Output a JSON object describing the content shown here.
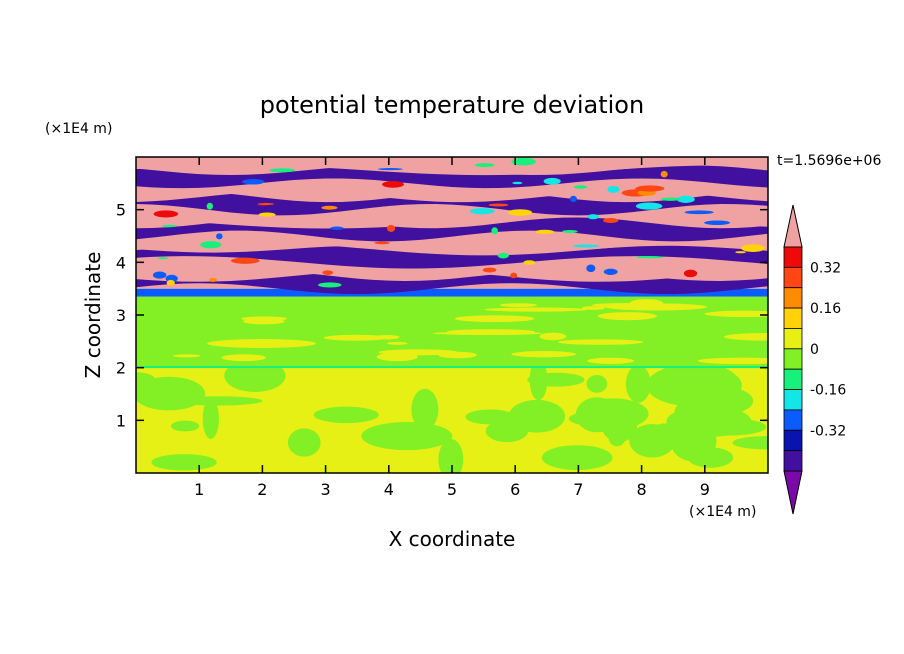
{
  "chart_data": {
    "type": "heatmap",
    "title": "potential temperature deviation",
    "xlabel": "X coordinate",
    "ylabel": "Z coordinate",
    "x_unit": "(×1E4 m)",
    "y_unit": "(×1E4 m)",
    "time_label": "t=1.5696e+06",
    "xlim": [
      0,
      10
    ],
    "ylim": [
      0,
      6
    ],
    "x_ticks": [
      "1",
      "2",
      "3",
      "4",
      "5",
      "6",
      "7",
      "8",
      "9"
    ],
    "y_ticks": [
      "1",
      "2",
      "3",
      "4",
      "5"
    ],
    "colorbar": {
      "levels": [
        -0.48,
        -0.4,
        -0.32,
        -0.24,
        -0.16,
        -0.08,
        0,
        0.08,
        0.16,
        0.24,
        0.32,
        0.4
      ],
      "tick_labels": [
        "0.32",
        "0.16",
        "0",
        "-0.16",
        "-0.32"
      ],
      "tick_values": [
        0.32,
        0.16,
        0,
        -0.16,
        -0.32
      ],
      "colors": [
        "#7a0aa8",
        "#42109e",
        "#0a12b0",
        "#0a5cff",
        "#14e6e6",
        "#18f07c",
        "#82f024",
        "#e6f014",
        "#ffd20a",
        "#ff8c00",
        "#ff4614",
        "#ec0a0a",
        "#f0a2a2"
      ],
      "extend": "both"
    },
    "regions": [
      {
        "z_range": [
          0,
          2.0
        ],
        "dominant_value": 0.04,
        "secondary_value": -0.04,
        "description": "lower layer"
      },
      {
        "z_range": [
          2.0,
          3.35
        ],
        "dominant_value": -0.04,
        "secondary_value": 0.04
      },
      {
        "z_range": [
          3.35,
          3.5
        ],
        "dominant_value": -0.32
      },
      {
        "z_range": [
          3.5,
          6.0
        ],
        "dominant_value": 0.44,
        "secondary_value": -0.44,
        "note": "alternating bands"
      }
    ]
  }
}
